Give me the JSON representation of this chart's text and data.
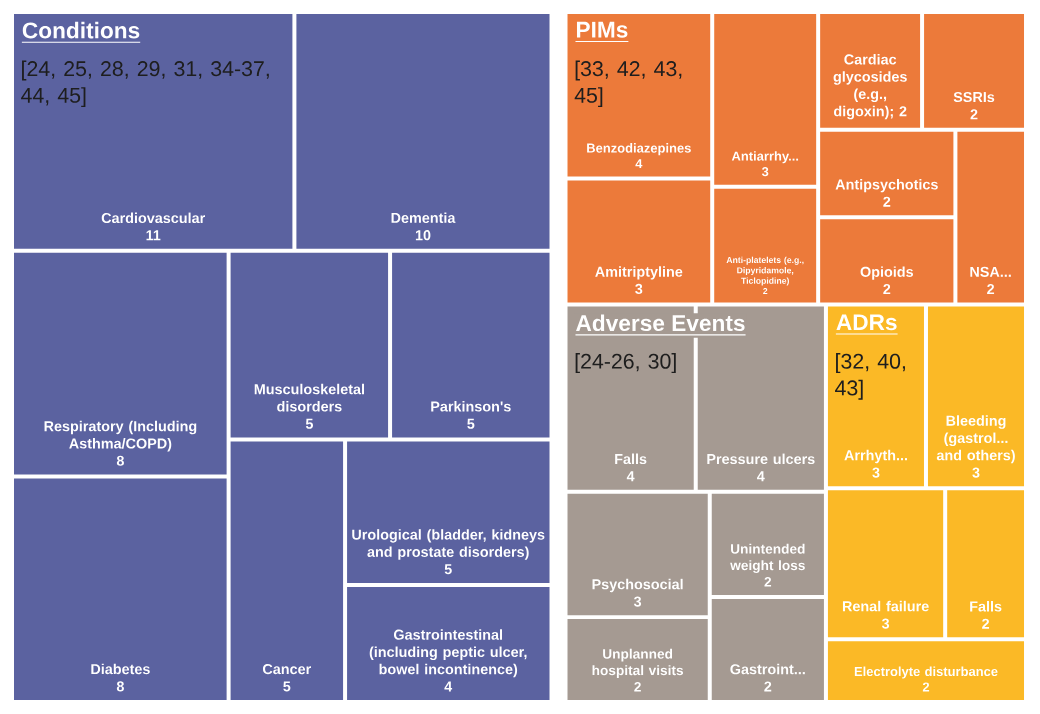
{
  "chart_data": {
    "type": "other",
    "categories": [
      "Cardiovascular",
      "Dementia",
      "Respiratory (Including Asthma/COPD)",
      "Diabetes",
      "Musculoskeletal disorders",
      "Parkinson's",
      "Cancer",
      "Urological (bladder, kidneys and prostate disorders)",
      "Gastrointestinal (including peptic ulcer, bowel incontinence)",
      "Benzodiazepines",
      "Amitriptyline",
      "Antiarrhy...",
      "Anti-platelets (e.g., Dipyridamole, Ticlopidine)",
      "Cardiac glycosides (e.g., digoxin)",
      "SSRIs",
      "Antipsychotics",
      "Opioids",
      "NSA...",
      "Falls",
      "Pressure ulcers",
      "Psychosocial",
      "Unplanned hospital visits",
      "Unintended weight loss",
      "Gastroint...",
      "Arrhyth...",
      "Bleeding (gastrol... and others)",
      "Renal failure",
      "Falls",
      "Electrolyte disturbance"
    ],
    "values": [
      11,
      10,
      8,
      8,
      5,
      5,
      5,
      5,
      4,
      4,
      3,
      3,
      2,
      2,
      2,
      2,
      2,
      2,
      4,
      4,
      3,
      2,
      2,
      2,
      3,
      3,
      3,
      2,
      2
    ],
    "colors": [
      "#5b62a0",
      "#5b62a0",
      "#5b62a0",
      "#5b62a0",
      "#5b62a0",
      "#5b62a0",
      "#5b62a0",
      "#5b62a0",
      "#5b62a0",
      "#ec7a3a",
      "#ec7a3a",
      "#ec7a3a",
      "#ec7a3a",
      "#ec7a3a",
      "#ec7a3a",
      "#ec7a3a",
      "#ec7a3a",
      "#ec7a3a",
      "#a59a92",
      "#a59a92",
      "#a59a92",
      "#a59a92",
      "#a59a92",
      "#a59a92",
      "#fbb926",
      "#fbb926",
      "#fbb926",
      "#fbb926",
      "#fbb926"
    ],
    "value_labels": [
      "11",
      "10",
      "8",
      "8",
      "5",
      "5",
      "5",
      "5",
      "4",
      "4",
      "3",
      "3",
      "2",
      "; 2",
      "2",
      "2",
      "2",
      "2",
      "4",
      "4",
      "3",
      "2",
      "2",
      "2",
      "3",
      "3",
      "3",
      "2",
      "2"
    ],
    "annotations": [
      "Conditions",
      "[24, 25, 28, 29, 31, 34-37, 44, 45]",
      "PIMs",
      "[33, 42, 43, 45]",
      "Adverse Events",
      "[24-26, 30]",
      "ADRs",
      "[32, 40, 43]"
    ]
  }
}
